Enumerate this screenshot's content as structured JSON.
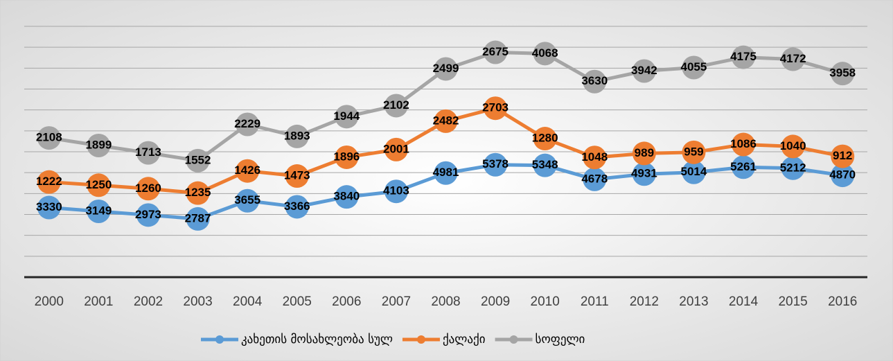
{
  "chart_data": {
    "type": "line",
    "stacked": true,
    "categories": [
      "2000",
      "2001",
      "2002",
      "2003",
      "2004",
      "2005",
      "2006",
      "2007",
      "2008",
      "2009",
      "2010",
      "2011",
      "2012",
      "2013",
      "2014",
      "2015",
      "2016"
    ],
    "series": [
      {
        "name": "კახეთის მოსახლეობა სულ",
        "color": "#5b9bd5",
        "values": [
          3330,
          3149,
          2973,
          2787,
          3655,
          3366,
          3840,
          4103,
          4981,
          5378,
          5348,
          4678,
          4931,
          5014,
          5261,
          5212,
          4870
        ]
      },
      {
        "name": "ქალაქი",
        "color": "#ed7d31",
        "values": [
          1222,
          1250,
          1260,
          1235,
          1426,
          1473,
          1896,
          2001,
          2482,
          2703,
          1280,
          1048,
          989,
          959,
          1086,
          1040,
          912
        ]
      },
      {
        "name": "სოფელი",
        "color": "#a5a5a5",
        "values": [
          2108,
          1899,
          1713,
          1552,
          2229,
          1893,
          1944,
          2102,
          2499,
          2675,
          4068,
          3630,
          3942,
          4055,
          4175,
          4172,
          3958
        ]
      }
    ],
    "ylim": [
      0,
      12000
    ],
    "yticks": [
      0,
      1000,
      2000,
      3000,
      4000,
      5000,
      6000,
      7000,
      8000,
      9000,
      10000,
      11000,
      12000
    ],
    "grid": true,
    "legend": "bottom"
  }
}
